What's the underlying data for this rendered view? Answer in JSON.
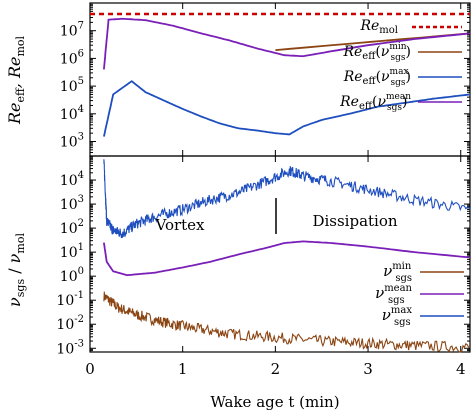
{
  "chart_data": [
    {
      "type": "line",
      "panel": "top",
      "ylabel": "Re_eff, Re_mol",
      "yscale": "log",
      "ylim": [
        300,
        100000000
      ],
      "xlim": [
        0,
        4.1
      ],
      "yticks": [
        {
          "exp": "3"
        },
        {
          "exp": "4"
        },
        {
          "exp": "5"
        },
        {
          "exp": "6"
        },
        {
          "exp": "7"
        }
      ],
      "legend_position": "right",
      "series": [
        {
          "name": "Re_mol",
          "color": "#cc0000",
          "style": "dashed",
          "constant": 40000000
        },
        {
          "name": "Re_eff(ν_sgs^min)",
          "color": "#8b4513",
          "style": "solid",
          "points": [
            [
              2.0,
              2000000
            ],
            [
              4.1,
              8000000
            ]
          ]
        },
        {
          "name": "Re_eff(ν_sgs^max)",
          "color": "#1f4fbf",
          "style": "solid",
          "points": [
            [
              0.15,
              1500
            ],
            [
              0.25,
              50000
            ],
            [
              0.45,
              150000
            ],
            [
              0.6,
              60000
            ],
            [
              0.8,
              30000
            ],
            [
              1.0,
              15000
            ],
            [
              1.2,
              8000
            ],
            [
              1.4,
              4500
            ],
            [
              1.6,
              3000
            ],
            [
              1.8,
              2500
            ],
            [
              2.0,
              2000
            ],
            [
              2.15,
              1800
            ],
            [
              2.3,
              3500
            ],
            [
              2.5,
              6000
            ],
            [
              2.8,
              10000
            ],
            [
              3.1,
              18000
            ],
            [
              3.4,
              25000
            ],
            [
              3.7,
              35000
            ],
            [
              4.1,
              50000
            ]
          ]
        },
        {
          "name": "Re_eff(ν_sgs^mean)",
          "color": "#7a1fb8",
          "style": "solid",
          "points": [
            [
              0.15,
              400000
            ],
            [
              0.2,
              25000000
            ],
            [
              0.35,
              27000000
            ],
            [
              0.6,
              24000000
            ],
            [
              0.9,
              15000000
            ],
            [
              1.2,
              8000000
            ],
            [
              1.5,
              4500000
            ],
            [
              1.8,
              2300000
            ],
            [
              2.1,
              1300000
            ],
            [
              2.3,
              1200000
            ],
            [
              2.6,
              1800000
            ],
            [
              3.0,
              3000000
            ],
            [
              3.5,
              5000000
            ],
            [
              4.1,
              8000000
            ]
          ]
        }
      ]
    },
    {
      "type": "line",
      "panel": "bottom",
      "xlabel": "Wake age t (min)",
      "ylabel": "ν_sgs / ν_mol",
      "yscale": "log",
      "ylim": [
        0.0007,
        100000
      ],
      "xlim": [
        0,
        4.1
      ],
      "xticks": [
        {
          "v": "0",
          "x": 0
        },
        {
          "v": "1",
          "x": 1
        },
        {
          "v": "2",
          "x": 2
        },
        {
          "v": "3",
          "x": 3
        },
        {
          "v": "4",
          "x": 4
        }
      ],
      "yticks": [
        {
          "exp": "-3"
        },
        {
          "exp": "-2"
        },
        {
          "exp": "-1"
        },
        {
          "exp": "0"
        },
        {
          "exp": "1"
        },
        {
          "exp": "2"
        },
        {
          "exp": "3"
        },
        {
          "exp": "4"
        }
      ],
      "annotations": {
        "left": "Vortex",
        "right": "Dissipation",
        "divider_x": 2.0
      },
      "legend_position": "bottom-right",
      "series": [
        {
          "name": "ν_sgs^min",
          "color": "#8b4513",
          "style": "noisy",
          "points": [
            [
              0.15,
              0.15
            ],
            [
              0.3,
              0.05
            ],
            [
              0.5,
              0.025
            ],
            [
              0.8,
              0.012
            ],
            [
              1.1,
              0.007
            ],
            [
              1.5,
              0.004
            ],
            [
              2.0,
              0.0028
            ],
            [
              2.5,
              0.002
            ],
            [
              3.0,
              0.0016
            ],
            [
              3.5,
              0.0013
            ],
            [
              4.1,
              0.0011
            ]
          ]
        },
        {
          "name": "ν_sgs^mean",
          "color": "#7a1fb8",
          "style": "solid",
          "points": [
            [
              0.15,
              25
            ],
            [
              0.18,
              4
            ],
            [
              0.25,
              1.6
            ],
            [
              0.4,
              1.1
            ],
            [
              0.7,
              1.4
            ],
            [
              1.0,
              2.3
            ],
            [
              1.3,
              4
            ],
            [
              1.6,
              8
            ],
            [
              1.9,
              15
            ],
            [
              2.1,
              24
            ],
            [
              2.3,
              28
            ],
            [
              2.6,
              24
            ],
            [
              3.0,
              17
            ],
            [
              3.5,
              10
            ],
            [
              4.1,
              6
            ]
          ]
        },
        {
          "name": "ν_sgs^max",
          "color": "#1f4fbf",
          "style": "noisy",
          "points": [
            [
              0.15,
              60000
            ],
            [
              0.18,
              200
            ],
            [
              0.25,
              80
            ],
            [
              0.35,
              60
            ],
            [
              0.5,
              150
            ],
            [
              0.7,
              300
            ],
            [
              1.0,
              600
            ],
            [
              1.3,
              1500
            ],
            [
              1.6,
              3000
            ],
            [
              1.9,
              9000
            ],
            [
              2.15,
              25000
            ],
            [
              2.3,
              15000
            ],
            [
              2.6,
              9000
            ],
            [
              3.0,
              4000
            ],
            [
              3.5,
              1500
            ],
            [
              4.1,
              600
            ]
          ]
        }
      ]
    }
  ]
}
